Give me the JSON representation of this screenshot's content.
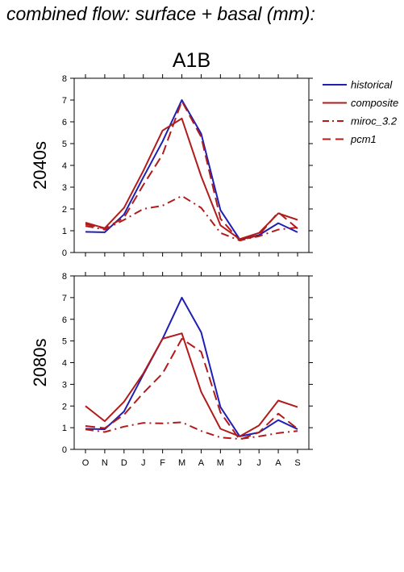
{
  "page_title": "combined flow: surface + basal (mm):",
  "colors": {
    "historical": "#1f1fb4",
    "composite": "#b01c1c",
    "miroc_3.2": "#b01c1c",
    "pcm1": "#b01c1c"
  },
  "legend": {
    "placement": "right",
    "entries": [
      {
        "name": "historical",
        "style": "solid",
        "color": "#1f1fb4"
      },
      {
        "name": "composite",
        "style": "solid",
        "color": "#b01c1c"
      },
      {
        "name": "miroc_3.2",
        "style": "dashdot",
        "color": "#b01c1c"
      },
      {
        "name": "pcm1",
        "style": "dashed",
        "color": "#b01c1c"
      }
    ]
  },
  "chart_data": [
    {
      "type": "line",
      "title": "A1B",
      "ylabel": "2040s",
      "xlabel": "",
      "categories": [
        "O",
        "N",
        "D",
        "J",
        "F",
        "M",
        "A",
        "M",
        "J",
        "J",
        "A",
        "S"
      ],
      "ylim": [
        0,
        8
      ],
      "yticks": [
        0,
        1,
        2,
        3,
        4,
        5,
        6,
        7,
        8
      ],
      "grid": false,
      "series": [
        {
          "name": "historical",
          "style": "solid",
          "color": "#1f1fb4",
          "values": [
            0.95,
            0.93,
            1.75,
            3.45,
            5.1,
            7.0,
            5.45,
            1.95,
            0.6,
            0.8,
            1.35,
            0.93
          ]
        },
        {
          "name": "composite",
          "style": "solid",
          "color": "#b01c1c",
          "values": [
            1.37,
            1.12,
            2.05,
            3.75,
            5.6,
            6.15,
            3.5,
            1.25,
            0.62,
            0.9,
            1.8,
            1.5
          ]
        },
        {
          "name": "miroc_3.2",
          "style": "dashdot",
          "color": "#b01c1c",
          "values": [
            1.22,
            1.05,
            1.5,
            2.0,
            2.15,
            2.6,
            2.05,
            0.9,
            0.55,
            0.75,
            1.05,
            1.15
          ]
        },
        {
          "name": "pcm1",
          "style": "dashed",
          "color": "#b01c1c",
          "values": [
            1.3,
            1.1,
            1.6,
            3.1,
            4.5,
            6.95,
            5.3,
            1.55,
            0.55,
            0.8,
            1.85,
            1.1
          ]
        }
      ]
    },
    {
      "type": "line",
      "title": "",
      "ylabel": "2080s",
      "xlabel": "",
      "categories": [
        "O",
        "N",
        "D",
        "J",
        "F",
        "M",
        "A",
        "M",
        "J",
        "J",
        "A",
        "S"
      ],
      "ylim": [
        0,
        8
      ],
      "yticks": [
        0,
        1,
        2,
        3,
        4,
        5,
        6,
        7,
        8
      ],
      "grid": false,
      "series": [
        {
          "name": "historical",
          "style": "solid",
          "color": "#1f1fb4",
          "values": [
            0.95,
            0.93,
            1.75,
            3.45,
            5.1,
            7.0,
            5.4,
            1.95,
            0.6,
            0.78,
            1.35,
            0.93
          ]
        },
        {
          "name": "composite",
          "style": "solid",
          "color": "#b01c1c",
          "values": [
            2.0,
            1.3,
            2.2,
            3.5,
            5.1,
            5.35,
            2.65,
            0.95,
            0.6,
            1.1,
            2.25,
            1.95
          ]
        },
        {
          "name": "miroc_3.2",
          "style": "dashdot",
          "color": "#b01c1c",
          "values": [
            0.92,
            0.8,
            1.05,
            1.22,
            1.2,
            1.25,
            0.85,
            0.55,
            0.48,
            0.6,
            0.75,
            0.85
          ]
        },
        {
          "name": "pcm1",
          "style": "dashed",
          "color": "#b01c1c",
          "values": [
            1.08,
            0.98,
            1.6,
            2.6,
            3.5,
            5.1,
            4.5,
            1.7,
            0.45,
            0.78,
            1.65,
            0.95
          ]
        }
      ]
    }
  ]
}
